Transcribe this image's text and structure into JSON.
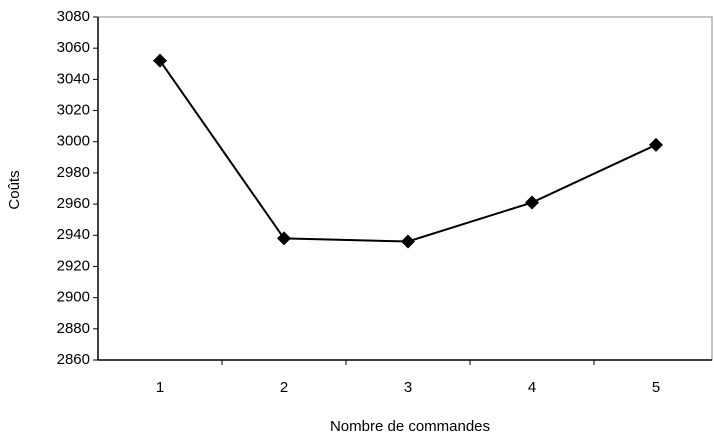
{
  "chart_data": {
    "type": "line",
    "x_label": "Nombre de commandes",
    "y_label": "Coûts",
    "categories": [
      "1",
      "2",
      "3",
      "4",
      "5"
    ],
    "series": [
      {
        "name": "Coûts",
        "color": "#000000",
        "values": [
          3052,
          2938,
          2936,
          2961,
          2998
        ]
      }
    ],
    "ylim": [
      2860,
      3080
    ],
    "yticks": [
      2860,
      2880,
      2900,
      2920,
      2940,
      2960,
      2980,
      3000,
      3020,
      3040,
      3060,
      3080
    ],
    "grid": false,
    "legend": false
  }
}
